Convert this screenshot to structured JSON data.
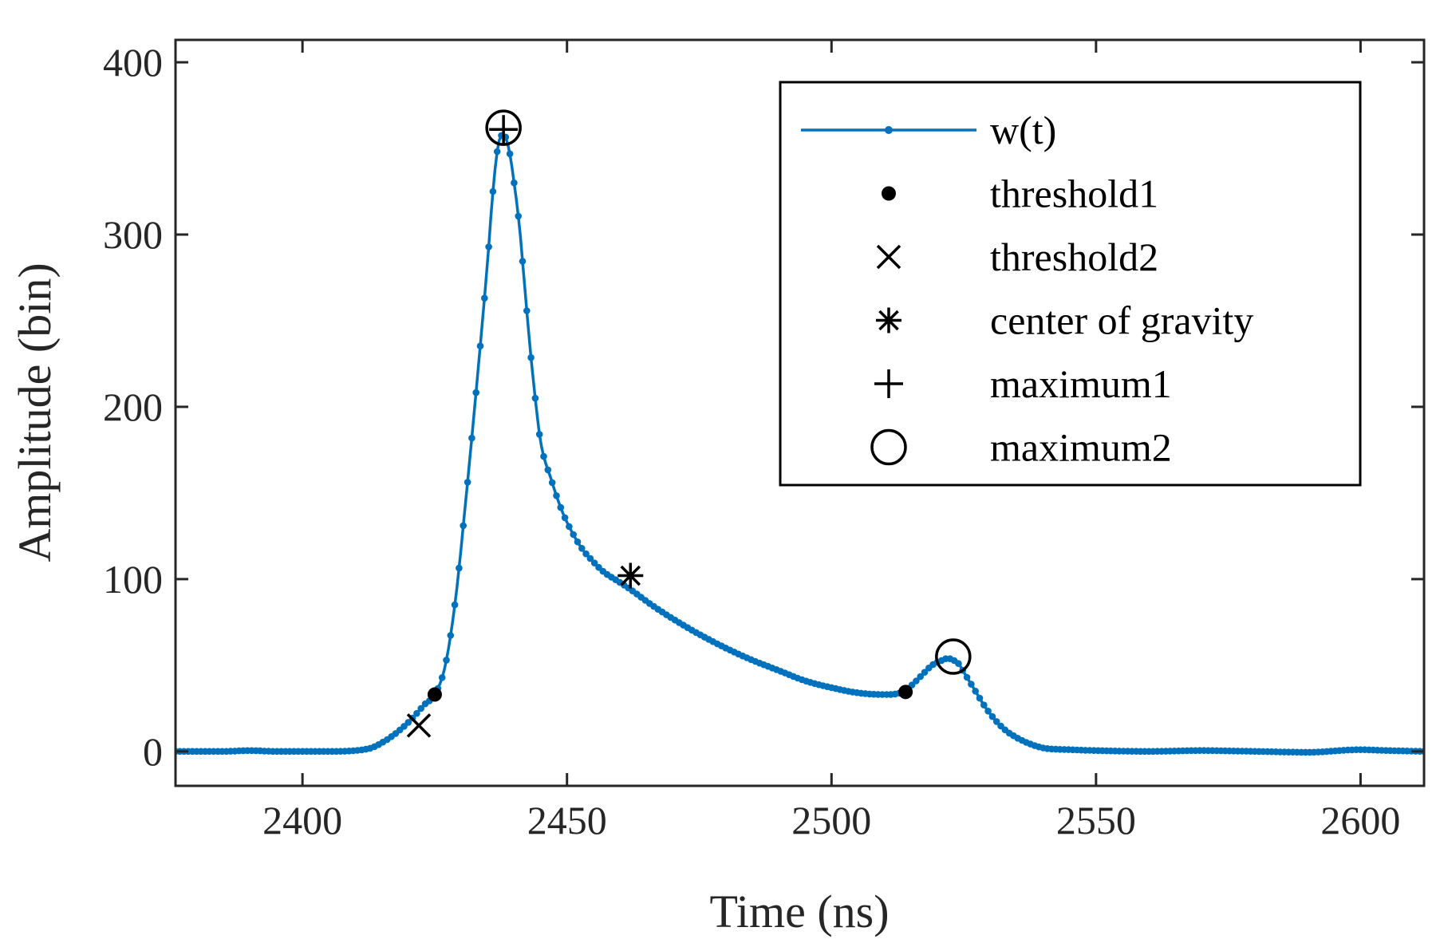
{
  "chart_data": {
    "type": "line",
    "title": "",
    "xlabel": "Time (ns)",
    "ylabel": "Amplitude (bin)",
    "xlim": [
      2376,
      2612
    ],
    "ylim": [
      -20,
      413
    ],
    "xticks": [
      2400,
      2450,
      2500,
      2550,
      2600
    ],
    "yticks": [
      0,
      100,
      200,
      300,
      400
    ],
    "xtick_labels": [
      "2400",
      "2450",
      "2500",
      "2550",
      "2600"
    ],
    "ytick_labels": [
      "0",
      "100",
      "200",
      "300",
      "400"
    ],
    "grid": false,
    "legend_position": "top-right",
    "colors": {
      "series": "#0072BD",
      "markers": "#000000",
      "axes": "#262626"
    },
    "series": [
      {
        "name": "w(t)",
        "style": "line-dot",
        "x": [
          2376,
          2380,
          2385,
          2390,
          2395,
          2400,
          2405,
          2410,
          2413,
          2415,
          2417,
          2419,
          2421,
          2423,
          2425,
          2427,
          2429,
          2431,
          2433,
          2435,
          2436,
          2437,
          2438,
          2439,
          2440,
          2441,
          2442,
          2443,
          2444,
          2445,
          2447,
          2449,
          2451,
          2453,
          2455,
          2457,
          2459,
          2462,
          2466,
          2470,
          2475,
          2480,
          2485,
          2490,
          2495,
          2500,
          2505,
          2510,
          2513,
          2515,
          2517,
          2519,
          2521,
          2522,
          2523,
          2524,
          2525,
          2527,
          2529,
          2531,
          2533,
          2535,
          2537,
          2540,
          2545,
          2550,
          2560,
          2570,
          2580,
          2590,
          2600,
          2605,
          2612
        ],
        "y": [
          0,
          0,
          0,
          0.5,
          0,
          0,
          0,
          0.5,
          2,
          5,
          9,
          14,
          20,
          27,
          33,
          50,
          90,
          150,
          215,
          285,
          325,
          352,
          358,
          350,
          330,
          305,
          270,
          235,
          205,
          180,
          158,
          140,
          127,
          117,
          110,
          104,
          100,
          94,
          85,
          77,
          68,
          60,
          53,
          47,
          41,
          37,
          34,
          33,
          34,
          38,
          44,
          50,
          53,
          54,
          53,
          51,
          46,
          36,
          26,
          18,
          12,
          8,
          5,
          2,
          1,
          0.5,
          0,
          0.5,
          0,
          -0.5,
          1,
          0.5,
          0
        ]
      }
    ],
    "markers": [
      {
        "name": "threshold1",
        "symbol": "dot",
        "points": [
          [
            2425,
            33
          ],
          [
            2514,
            34.5
          ]
        ]
      },
      {
        "name": "threshold2",
        "symbol": "cross",
        "points": [
          [
            2422,
            15
          ]
        ]
      },
      {
        "name": "center of gravity",
        "symbol": "asterisk",
        "points": [
          [
            2462,
            102
          ]
        ]
      },
      {
        "name": "maximum1",
        "symbol": "plus",
        "points": [
          [
            2438,
            361
          ]
        ]
      },
      {
        "name": "maximum2",
        "symbol": "circle",
        "points": [
          [
            2438,
            362
          ],
          [
            2523,
            55
          ]
        ]
      }
    ],
    "legend": [
      {
        "label": "w(t)",
        "symbol": "line-dot"
      },
      {
        "label": "threshold1",
        "symbol": "dot"
      },
      {
        "label": "threshold2",
        "symbol": "cross"
      },
      {
        "label": "center of gravity",
        "symbol": "asterisk"
      },
      {
        "label": "maximum1",
        "symbol": "plus"
      },
      {
        "label": "maximum2",
        "symbol": "circle"
      }
    ]
  }
}
